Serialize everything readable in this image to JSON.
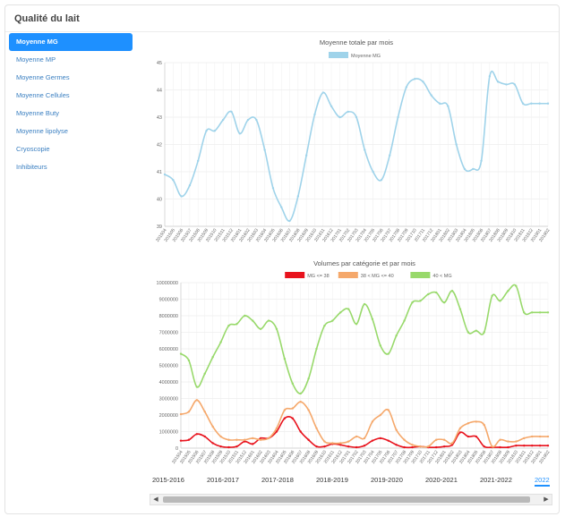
{
  "panel": {
    "title": "Qualité du lait"
  },
  "menu": {
    "items": [
      {
        "label": "Moyenne MG",
        "active": true
      },
      {
        "label": "Moyenne MP",
        "active": false
      },
      {
        "label": "Moyenne Germes",
        "active": false
      },
      {
        "label": "Moyenne Cellules",
        "active": false
      },
      {
        "label": "Moyenne Buty",
        "active": false
      },
      {
        "label": "Moyenne lipolyse",
        "active": false
      },
      {
        "label": "Cryoscopie",
        "active": false
      },
      {
        "label": "Inhibiteurs",
        "active": false
      }
    ]
  },
  "chart_data": [
    {
      "type": "line",
      "title": "Moyenne totale par mois",
      "ylim": [
        39,
        45
      ],
      "yticks": [
        "39",
        "40",
        "41",
        "42",
        "43",
        "44",
        "45"
      ],
      "grid": true,
      "legend": "top-center",
      "x": [
        "201504",
        "201505",
        "201506",
        "201507",
        "201508",
        "201509",
        "201510",
        "201511",
        "201512",
        "201601",
        "201602",
        "201603",
        "201604",
        "201605",
        "201606",
        "201607",
        "201608",
        "201609",
        "201610",
        "201611",
        "201612",
        "201701",
        "201702",
        "201703",
        "201704",
        "201705",
        "201706",
        "201707",
        "201708",
        "201709",
        "201710",
        "201711",
        "201712",
        "201801",
        "201802",
        "201803",
        "201804",
        "201805",
        "201806",
        "201807",
        "201808",
        "201809",
        "201810",
        "201811",
        "201812",
        "201901",
        "201902"
      ],
      "series": [
        {
          "name": "Moyenne MG",
          "color": "#9fd3ea",
          "values": [
            40.9,
            40.7,
            40.1,
            40.5,
            41.4,
            42.5,
            42.5,
            42.9,
            43.2,
            42.4,
            42.9,
            42.9,
            41.8,
            40.4,
            39.7,
            39.2,
            40.1,
            41.6,
            43.1,
            43.9,
            43.4,
            43.0,
            43.2,
            43.0,
            41.8,
            41.0,
            40.7,
            41.6,
            43.0,
            44.1,
            44.4,
            44.3,
            43.8,
            43.5,
            43.4,
            42.0,
            41.1,
            41.1,
            41.4,
            44.5,
            44.3,
            44.2,
            44.2,
            43.5,
            43.5,
            43.5,
            43.5
          ]
        }
      ]
    },
    {
      "type": "line",
      "title": "Volumes par catégorie et par mois",
      "ylim": [
        0,
        10000000
      ],
      "yticks": [
        "0",
        "1000000",
        "2000000",
        "3000000",
        "4000000",
        "5000000",
        "6000000",
        "7000000",
        "8000000",
        "9000000",
        "10000000"
      ],
      "grid": true,
      "legend": "top-center",
      "x": [
        "201504",
        "201505",
        "201506",
        "201507",
        "201508",
        "201509",
        "201510",
        "201511",
        "201512",
        "201601",
        "201602",
        "201603",
        "201604",
        "201605",
        "201606",
        "201607",
        "201608",
        "201609",
        "201610",
        "201611",
        "201612",
        "201701",
        "201702",
        "201703",
        "201704",
        "201705",
        "201706",
        "201707",
        "201708",
        "201709",
        "201710",
        "201711",
        "201712",
        "201801",
        "201802",
        "201803",
        "201804",
        "201805",
        "201806",
        "201807",
        "201808",
        "201809",
        "201810",
        "201811",
        "201812",
        "201901",
        "201902"
      ],
      "series": [
        {
          "name": "MG <= 38",
          "color": "#e8131d",
          "values": [
            450000,
            500000,
            850000,
            700000,
            300000,
            100000,
            50000,
            100000,
            400000,
            250000,
            600000,
            600000,
            1000000,
            1800000,
            1800000,
            1000000,
            500000,
            100000,
            100000,
            250000,
            200000,
            100000,
            50000,
            150000,
            450000,
            600000,
            450000,
            200000,
            50000,
            50000,
            100000,
            50000,
            50000,
            100000,
            200000,
            950000,
            700000,
            700000,
            100000,
            50000,
            50000,
            50000,
            150000,
            150000,
            150000,
            150000,
            150000
          ]
        },
        {
          "name": "38 < MG <= 40",
          "color": "#f5a86b",
          "values": [
            2050000,
            2200000,
            2900000,
            2200000,
            1300000,
            700000,
            500000,
            500000,
            500000,
            600000,
            500000,
            600000,
            1200000,
            2300000,
            2400000,
            2800000,
            2300000,
            1200000,
            400000,
            300000,
            300000,
            400000,
            700000,
            600000,
            1600000,
            2000000,
            2300000,
            1100000,
            500000,
            200000,
            100000,
            100000,
            500000,
            500000,
            300000,
            1200000,
            1500000,
            1600000,
            1400000,
            100000,
            500000,
            400000,
            400000,
            600000,
            700000,
            700000,
            700000
          ]
        },
        {
          "name": "40 < MG",
          "color": "#98d96b",
          "values": [
            5700000,
            5300000,
            3700000,
            4500000,
            5500000,
            6400000,
            7400000,
            7500000,
            8000000,
            7700000,
            7200000,
            7700000,
            7200000,
            5400000,
            3900000,
            3300000,
            4200000,
            6000000,
            7400000,
            7700000,
            8200000,
            8400000,
            7500000,
            8700000,
            7800000,
            6200000,
            5700000,
            6800000,
            7700000,
            8800000,
            8900000,
            9300000,
            9400000,
            8800000,
            9500000,
            8400000,
            7000000,
            7100000,
            7000000,
            9200000,
            8900000,
            9500000,
            9800000,
            8200000,
            8200000,
            8200000,
            8200000
          ]
        }
      ]
    }
  ],
  "tabs": [
    "2015-2016",
    "2016-2017",
    "2017-2018",
    "2018-2019",
    "2019-2020",
    "2020-2021",
    "2021-2022",
    "2022"
  ],
  "active_tab": "2022",
  "scroll": {
    "left_arrow": "◀",
    "right_arrow": "▶"
  }
}
